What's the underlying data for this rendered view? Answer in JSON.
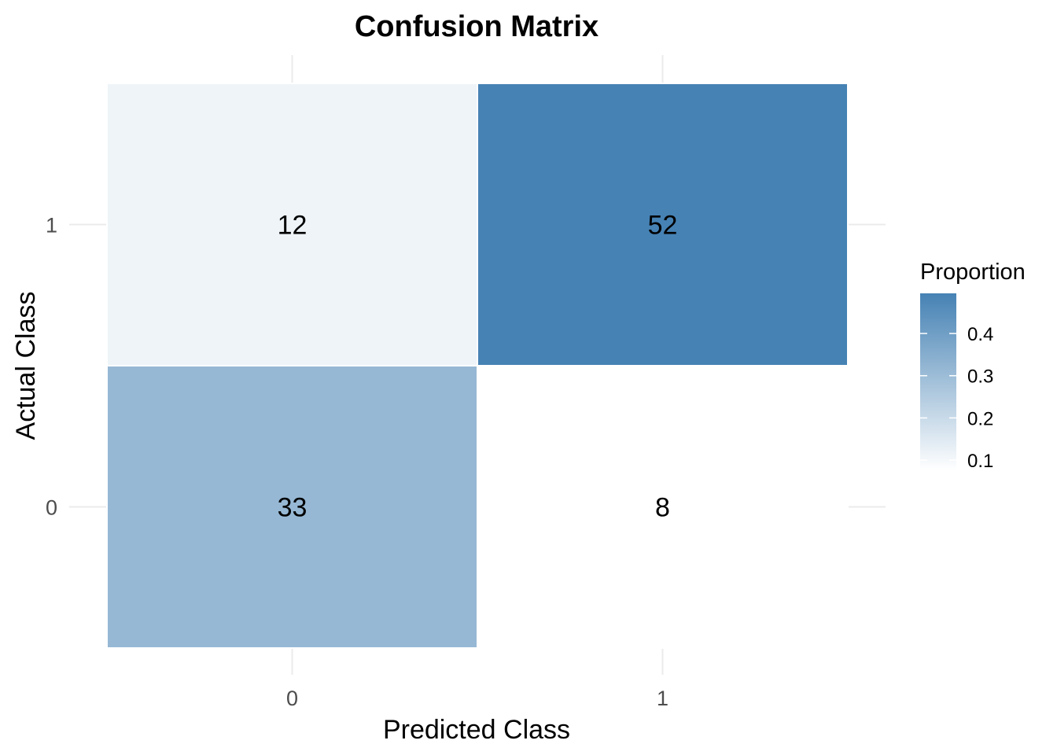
{
  "chart_data": {
    "type": "heatmap",
    "title": "Confusion Matrix",
    "xlabel": "Predicted Class",
    "ylabel": "Actual Class",
    "x_categories": [
      "0",
      "1"
    ],
    "y_categories": [
      "0",
      "1"
    ],
    "cells": [
      {
        "predicted": "0",
        "actual": "1",
        "count": 12,
        "proportion": 0.114
      },
      {
        "predicted": "1",
        "actual": "1",
        "count": 52,
        "proportion": 0.495
      },
      {
        "predicted": "0",
        "actual": "0",
        "count": 33,
        "proportion": 0.314
      },
      {
        "predicted": "1",
        "actual": "0",
        "count": 8,
        "proportion": 0.076
      }
    ],
    "legend": {
      "title": "Proportion",
      "placement": "right",
      "ticks": [
        "0.1",
        "0.2",
        "0.3",
        "0.4"
      ],
      "tick_values": [
        0.1,
        0.2,
        0.3,
        0.4
      ],
      "range": [
        0.076,
        0.495
      ],
      "low_color": "#ffffff",
      "high_color": "#4682b4"
    },
    "grid": true
  }
}
